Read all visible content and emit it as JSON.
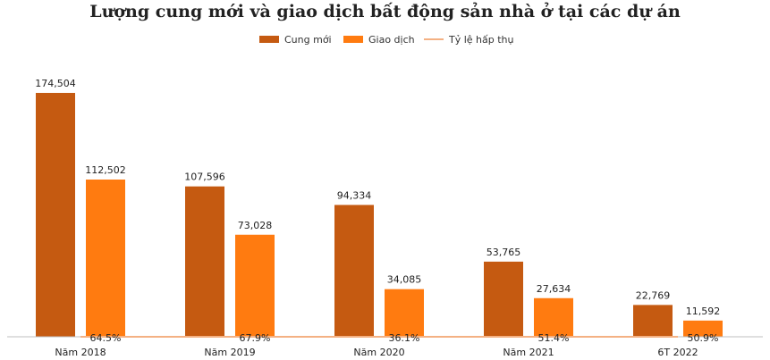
{
  "chart_data": {
    "type": "bar",
    "title": "Lượng cung mới và giao dịch bất động sản nhà ở tại các dự án",
    "categories": [
      "Năm 2018",
      "Năm 2019",
      "Năm 2020",
      "Năm 2021",
      "6T 2022"
    ],
    "series": [
      {
        "name": "Cung mới",
        "type": "bar",
        "color": "#C55A11",
        "values": [
          174504,
          107596,
          94334,
          53765,
          22769
        ],
        "labels": [
          "174,504",
          "107,596",
          "94,334",
          "53,765",
          "22,769"
        ]
      },
      {
        "name": "Giao dịch",
        "type": "bar",
        "color": "#FF7B10",
        "values": [
          112502,
          73028,
          34085,
          27634,
          11592
        ],
        "labels": [
          "112,502",
          "73,028",
          "34,085",
          "27,634",
          "11,592"
        ]
      },
      {
        "name": "Tỷ lệ hấp thụ",
        "type": "line",
        "color": "#F4B183",
        "values": [
          64.5,
          67.9,
          36.1,
          51.4,
          50.9
        ],
        "labels": [
          "64.5%",
          "67.9%",
          "36.1%",
          "51.4%",
          "50.9%"
        ]
      }
    ],
    "ylim": [
      0,
      190000
    ],
    "grid": false,
    "legend_position": "top"
  }
}
